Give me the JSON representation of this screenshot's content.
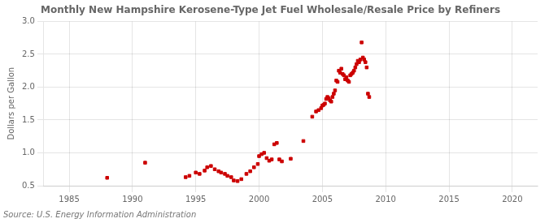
{
  "chart_data": {
    "type": "scatter",
    "title": "Monthly New Hampshire Kerosene-Type Jet Fuel Wholesale/Resale Price by Refiners",
    "ylabel": "Dollars per Gallon",
    "annotations": [
      "Source: U.S. Energy Information Administration"
    ],
    "color": "#cc0000",
    "marker": "square",
    "grid": true,
    "xlim": [
      1983,
      2022
    ],
    "ylim": [
      0.5,
      3.0
    ],
    "xticks": [
      1985,
      1990,
      1995,
      2000,
      2005,
      2010,
      2015,
      2020
    ],
    "yticks": [
      0.5,
      {
        "value": 1.0,
        "label": "1.0"
      },
      1.5,
      {
        "value": 2.0,
        "label": "2.0"
      },
      2.5,
      {
        "value": 3.0,
        "label": "3.0"
      }
    ],
    "x": [
      1988.0,
      1991.0,
      1994.2,
      1994.5,
      1995.0,
      1995.3,
      1995.7,
      1995.9,
      1996.2,
      1996.5,
      1996.8,
      1997.0,
      1997.3,
      1997.5,
      1997.8,
      1998.0,
      1998.3,
      1998.6,
      1999.0,
      1999.3,
      1999.6,
      1999.9,
      2000.0,
      2000.2,
      2000.4,
      2000.6,
      2000.8,
      2001.0,
      2001.2,
      2001.4,
      2001.6,
      2001.8,
      2002.5,
      2003.5,
      2004.2,
      2004.5,
      2004.7,
      2004.9,
      2005.0,
      2005.1,
      2005.2,
      2005.3,
      2005.4,
      2005.5,
      2005.6,
      2005.7,
      2005.8,
      2005.9,
      2006.0,
      2006.1,
      2006.2,
      2006.3,
      2006.4,
      2006.5,
      2006.6,
      2006.7,
      2006.8,
      2006.9,
      2007.0,
      2007.1,
      2007.2,
      2007.3,
      2007.4,
      2007.5,
      2007.6,
      2007.7,
      2007.8,
      2007.9,
      2008.0,
      2008.1,
      2008.2,
      2008.3,
      2008.4,
      2008.5,
      2008.6,
      2008.7
    ],
    "values": [
      0.62,
      0.85,
      0.63,
      0.65,
      0.7,
      0.68,
      0.73,
      0.78,
      0.8,
      0.75,
      0.72,
      0.7,
      0.68,
      0.65,
      0.63,
      0.58,
      0.57,
      0.6,
      0.68,
      0.72,
      0.78,
      0.83,
      0.95,
      0.98,
      1.0,
      0.92,
      0.88,
      0.9,
      1.13,
      1.15,
      0.9,
      0.87,
      0.91,
      1.18,
      1.55,
      1.63,
      1.65,
      1.68,
      1.72,
      1.73,
      1.75,
      1.82,
      1.85,
      1.83,
      1.8,
      1.78,
      1.85,
      1.9,
      1.95,
      2.1,
      2.08,
      2.25,
      2.22,
      2.28,
      2.2,
      2.18,
      2.12,
      2.15,
      2.1,
      2.08,
      2.18,
      2.2,
      2.22,
      2.25,
      2.3,
      2.35,
      2.4,
      2.38,
      2.42,
      2.68,
      2.45,
      2.42,
      2.38,
      2.3,
      1.9,
      1.85
    ]
  }
}
